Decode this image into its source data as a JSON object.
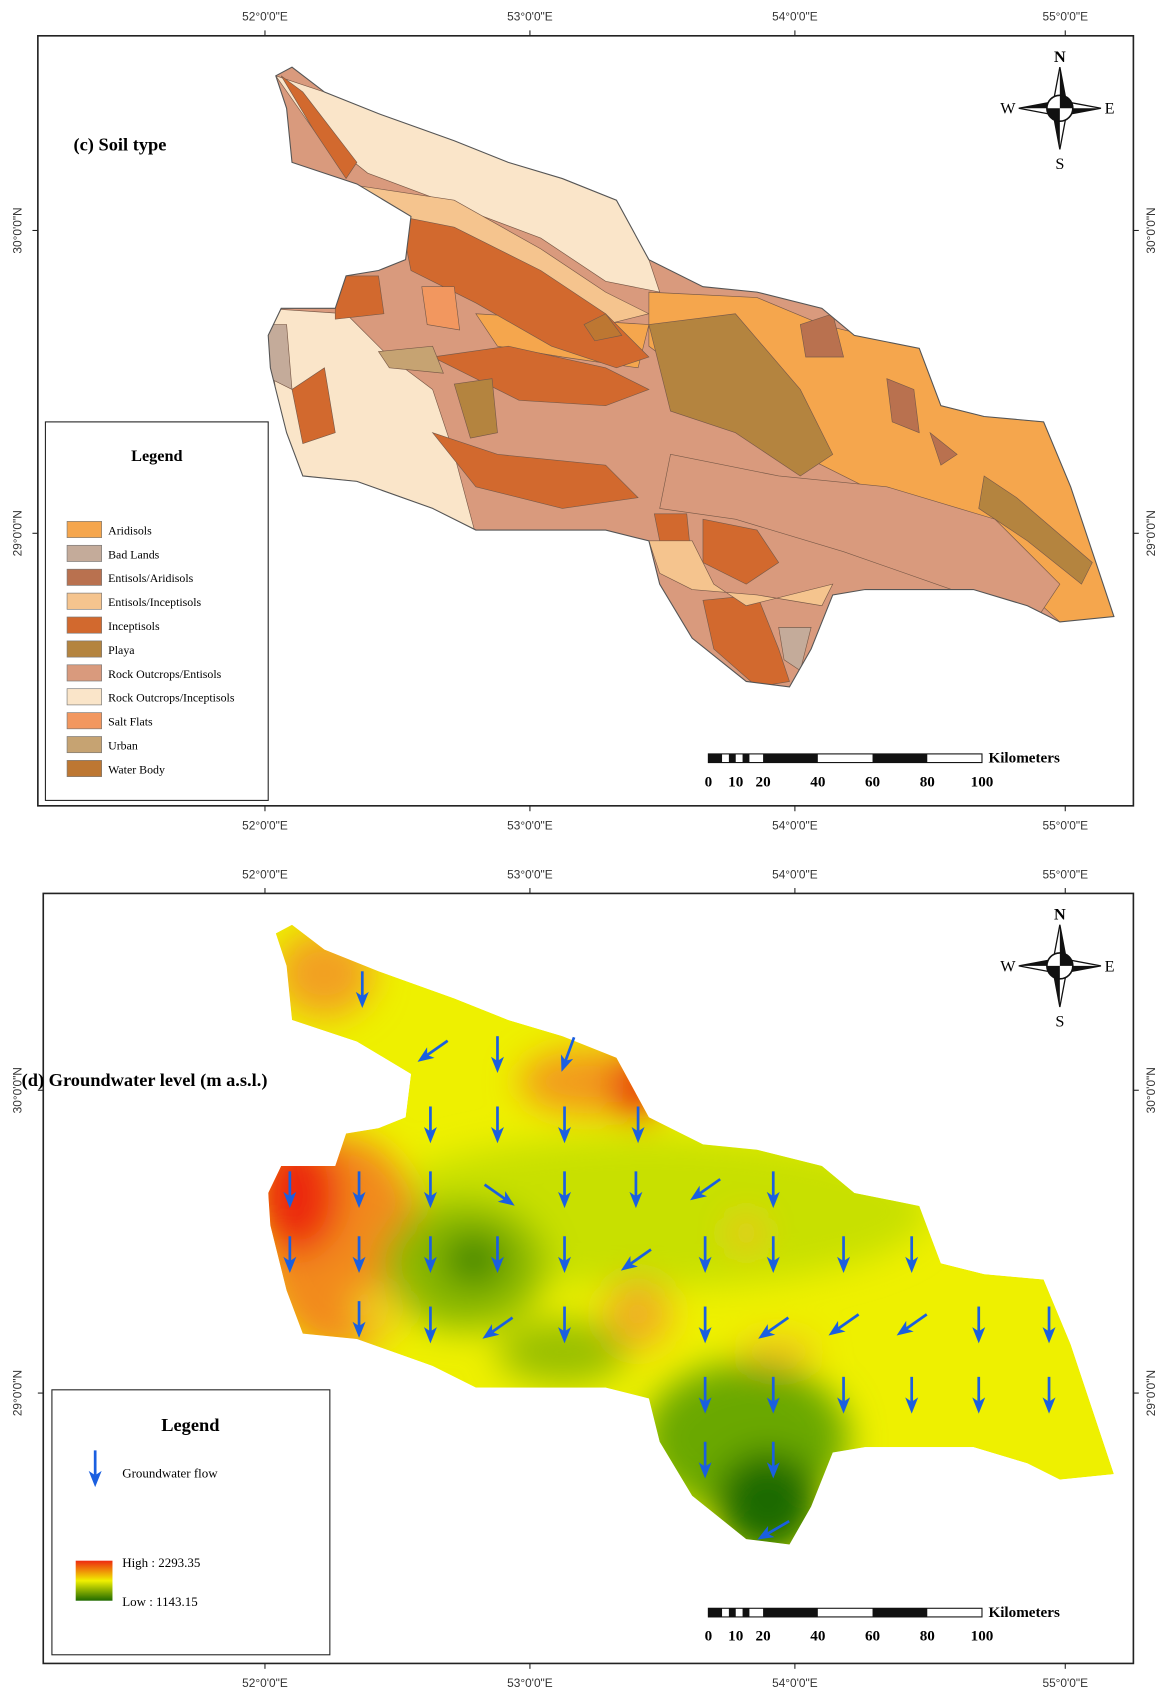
{
  "panels": [
    {
      "title": "(c) Soil type",
      "top_labels": [
        "52°0'0\"E",
        "53°0'0\"E",
        "54°0'0\"E",
        "55°0'0\"E"
      ],
      "bottom_labels": [
        "52°0'0\"E",
        "53°0'0\"E",
        "54°0'0\"E",
        "55°0'0\"E"
      ],
      "left_labels": [
        "30°0'0\"N",
        "29°0'0\"N"
      ],
      "right_labels": [
        "30°0'0\"N",
        "29°0'0\"N"
      ],
      "compass": {
        "n": "N",
        "s": "S",
        "w": "W",
        "e": "E"
      },
      "legend": {
        "title": "Legend",
        "items": [
          {
            "label": "Aridisols",
            "color": "#f5a64d"
          },
          {
            "label": "Bad Lands",
            "color": "#c4ab9a"
          },
          {
            "label": "Entisols/Aridisols",
            "color": "#b9714f"
          },
          {
            "label": "Entisols/Inceptisols",
            "color": "#f5c48e"
          },
          {
            "label": "Inceptisols",
            "color": "#d2692e"
          },
          {
            "label": "Playa",
            "color": "#b4843f"
          },
          {
            "label": "Rock Outcrops/Entisols",
            "color": "#d99a7d"
          },
          {
            "label": "Rock Outcrops/Inceptisols",
            "color": "#fae5c9"
          },
          {
            "label": "Salt Flats",
            "color": "#f2975f"
          },
          {
            "label": "Urban",
            "color": "#c6a372"
          },
          {
            "label": "Water Body",
            "color": "#bd7732"
          }
        ]
      },
      "scale_bar": {
        "unit": "Kilometers",
        "labels": [
          0,
          10,
          20,
          40,
          60,
          80,
          100
        ]
      }
    },
    {
      "title": "(d) Groundwater level (m a.s.l.)",
      "top_labels": [
        "52°0'0\"E",
        "53°0'0\"E",
        "54°0'0\"E",
        "55°0'0\"E"
      ],
      "bottom_labels": [
        "52°0'0\"E",
        "53°0'0\"E",
        "54°0'0\"E",
        "55°0'0\"E"
      ],
      "left_labels": [
        "30°0'0\"N",
        "29°0'0\"N"
      ],
      "right_labels": [
        "30°0'0\"N",
        "29°0'0\"N"
      ],
      "compass": {
        "n": "N",
        "s": "S",
        "w": "W",
        "e": "E"
      },
      "legend": {
        "title": "Legend",
        "flow": "Groundwater flow",
        "high": "High : 2293.35",
        "low": "Low : 1143.15"
      },
      "scale_bar": {
        "unit": "Kilometers",
        "labels": [
          0,
          10,
          20,
          40,
          60,
          80,
          100
        ]
      }
    }
  ]
}
